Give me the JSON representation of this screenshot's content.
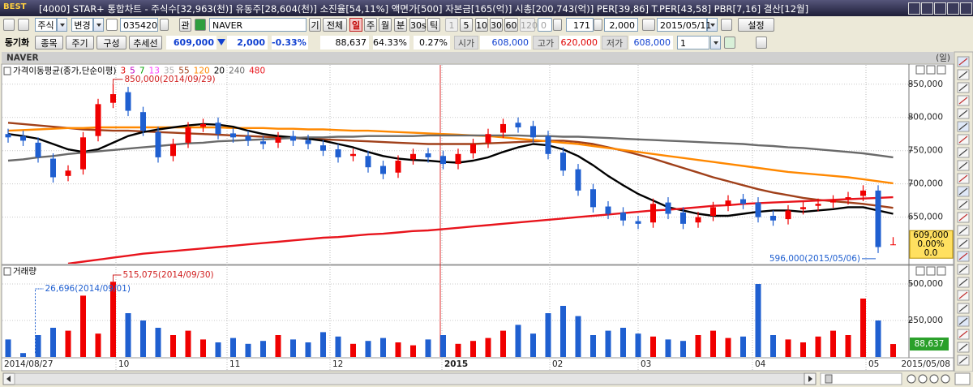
{
  "title_bar": {
    "logo": "BEST",
    "text": "[4000] STAR+ 통합차트 - 주식수[32,963(천)] 유동주[28,604(천)] 소진율[54,11%] 액면가[500] 자본금[165(억)] 시총[200,743(억)] PER[39,86] T.PER[43,58] PBR[7,16] 결산[12월]"
  },
  "toolbar_row1": [
    "주식",
    "변경",
    "035420",
    "관",
    "NAVER",
    "기",
    "전체",
    "일",
    "주",
    "월",
    "분",
    "30s",
    "틱",
    "1",
    "5",
    "10",
    "30",
    "60",
    "120",
    "0",
    "171",
    "2,000",
    "2015/05/11",
    "설정"
  ],
  "toolbar_row2": [
    "동기화",
    "종목",
    "주기",
    "구성",
    "추세선",
    "609,000",
    "2,000",
    "-0.33%",
    "88,637",
    "64.33%",
    "0.27%",
    "시가",
    "608,000",
    "고가",
    "620,000",
    "저가",
    "608,000",
    "1"
  ],
  "panel": {
    "name": "NAVER",
    "period": "(일)"
  },
  "chart_data": [
    {
      "type": "candlestick",
      "title": "가격이동평균(종가,단순이평)",
      "open": [
        775000,
        772000,
        762000,
        738000,
        712000,
        722000,
        772000,
        822000,
        838000,
        808000,
        778000,
        742000,
        762000,
        786000,
        792000,
        776000,
        772000,
        764000,
        762000,
        772000,
        766000,
        758000,
        752000,
        742000,
        742000,
        727000,
        717000,
        737000,
        746000,
        742000,
        730000,
        746000,
        762000,
        777000,
        792000,
        787000,
        772000,
        747000,
        722000,
        692000,
        666000,
        657000,
        644000,
        642000,
        672000,
        657000,
        642000,
        652000,
        667000,
        677000,
        672000,
        652000,
        647000,
        662000,
        667000,
        672000,
        677000,
        682000,
        690000,
        608000
      ],
      "high": [
        783000,
        780000,
        770000,
        746000,
        728000,
        778000,
        828000,
        850000,
        846000,
        816000,
        786000,
        768000,
        793000,
        798000,
        800000,
        784000,
        780000,
        772000,
        778000,
        780000,
        774000,
        766000,
        760000,
        753000,
        750000,
        735000,
        743000,
        753000,
        754000,
        750000,
        753000,
        768000,
        783000,
        798000,
        800000,
        795000,
        780000,
        755000,
        730000,
        700000,
        674000,
        665000,
        652000,
        678000,
        680000,
        665000,
        658000,
        673000,
        683000,
        685000,
        680000,
        660000,
        668000,
        673000,
        678000,
        683000,
        688000,
        698000,
        698000,
        620000
      ],
      "low": [
        762000,
        757000,
        732000,
        702000,
        704000,
        714000,
        764000,
        814000,
        802000,
        772000,
        732000,
        734000,
        754000,
        778000,
        767000,
        762000,
        757000,
        752000,
        754000,
        757000,
        752000,
        742000,
        732000,
        734000,
        717000,
        707000,
        709000,
        729000,
        732000,
        722000,
        722000,
        738000,
        754000,
        769000,
        777000,
        762000,
        737000,
        712000,
        682000,
        657000,
        647000,
        637000,
        632000,
        634000,
        647000,
        632000,
        634000,
        644000,
        659000,
        662000,
        642000,
        637000,
        639000,
        654000,
        659000,
        664000,
        669000,
        674000,
        596000,
        608000
      ],
      "close": [
        770000,
        765000,
        740000,
        710000,
        720000,
        770000,
        820000,
        835000,
        810000,
        780000,
        740000,
        760000,
        785000,
        790000,
        775000,
        770000,
        765000,
        760000,
        770000,
        765000,
        760000,
        750000,
        740000,
        745000,
        725000,
        715000,
        735000,
        745000,
        740000,
        730000,
        745000,
        760000,
        775000,
        790000,
        785000,
        770000,
        745000,
        720000,
        690000,
        665000,
        655000,
        645000,
        640000,
        670000,
        655000,
        640000,
        650000,
        665000,
        675000,
        670000,
        650000,
        645000,
        660000,
        665000,
        670000,
        675000,
        680000,
        690000,
        605000,
        609000
      ],
      "up_color": "#f00000",
      "down_color": "#1f5fd0",
      "ylim": [
        580000,
        879000
      ],
      "yticks": [
        {
          "value": 850000,
          "label": "850,000"
        },
        {
          "value": 800000,
          "label": "800,000"
        },
        {
          "value": 750000,
          "label": "750,000"
        },
        {
          "value": 700000,
          "label": "700,000"
        },
        {
          "value": 650000,
          "label": "650,000"
        }
      ],
      "grid": true,
      "xtick_labels": [
        "2014/08/27",
        "10",
        "11",
        "12",
        "2015",
        "02",
        "03",
        "04",
        "05",
        "2015/05/08"
      ],
      "short_ma": [
        {
          "name": "3",
          "color": "#e00000"
        },
        {
          "name": "5",
          "color": "#c000c0"
        },
        {
          "name": "7",
          "color": "#00a000"
        },
        {
          "name": "13",
          "color": "#ff40ff"
        },
        {
          "name": "35",
          "color": "#b0b0b0"
        }
      ],
      "series": [
        {
          "name": "55",
          "color": "#a0401a",
          "values": [
            792000,
            790000,
            788000,
            786000,
            784000,
            782000,
            781000,
            780000,
            780000,
            779000,
            778000,
            777000,
            776000,
            775000,
            774000,
            773000,
            772000,
            771000,
            770000,
            769000,
            768000,
            767000,
            766000,
            765000,
            764000,
            763000,
            762000,
            761000,
            760000,
            760000,
            760000,
            760000,
            761000,
            762000,
            763000,
            764000,
            765000,
            765000,
            763000,
            760000,
            755000,
            750000,
            744000,
            738000,
            731000,
            724000,
            717000,
            710000,
            704000,
            698000,
            692000,
            687000,
            683000,
            679000,
            676000,
            674000,
            672000,
            670000,
            667000,
            664000
          ]
        },
        {
          "name": "120",
          "color": "#ff8800",
          "values": [
            780000,
            781000,
            782000,
            783000,
            784000,
            784000,
            785000,
            785000,
            785000,
            785000,
            785000,
            785000,
            785000,
            785000,
            785000,
            784000,
            784000,
            784000,
            783000,
            783000,
            782000,
            782000,
            781000,
            780000,
            780000,
            779000,
            778000,
            777000,
            776000,
            775000,
            774000,
            773000,
            772000,
            770000,
            768000,
            766000,
            764000,
            762000,
            760000,
            757000,
            754000,
            751000,
            748000,
            745000,
            742000,
            739000,
            736000,
            733000,
            730000,
            727000,
            724000,
            721000,
            718000,
            716000,
            714000,
            712000,
            710000,
            707000,
            704000,
            701000
          ]
        },
        {
          "name": "20",
          "color": "#000000",
          "values": [
            775000,
            772000,
            768000,
            760000,
            752000,
            748000,
            752000,
            762000,
            772000,
            778000,
            782000,
            785000,
            788000,
            790000,
            789000,
            786000,
            780000,
            775000,
            772000,
            770000,
            768000,
            765000,
            760000,
            755000,
            748000,
            742000,
            738000,
            736000,
            735000,
            733000,
            732000,
            735000,
            740000,
            748000,
            755000,
            760000,
            758000,
            752000,
            742000,
            728000,
            712000,
            698000,
            685000,
            675000,
            665000,
            660000,
            655000,
            652000,
            652000,
            655000,
            658000,
            660000,
            660000,
            658000,
            660000,
            662000,
            665000,
            665000,
            660000,
            655000
          ]
        },
        {
          "name": "240",
          "color": "#6a6a6a",
          "values": [
            735000,
            737000,
            740000,
            742000,
            745000,
            747000,
            749000,
            751000,
            753000,
            755000,
            757000,
            759000,
            761000,
            762000,
            764000,
            765000,
            766000,
            767000,
            768000,
            769000,
            770000,
            770000,
            771000,
            771000,
            772000,
            772000,
            772000,
            772000,
            773000,
            773000,
            773000,
            773000,
            773000,
            773000,
            773000,
            772000,
            772000,
            771000,
            771000,
            770000,
            769000,
            768000,
            767000,
            766000,
            765000,
            764000,
            763000,
            762000,
            761000,
            760000,
            758000,
            757000,
            755000,
            754000,
            752000,
            750000,
            748000,
            746000,
            743000,
            740000
          ]
        },
        {
          "name": "480",
          "color": "#e8141c",
          "values": [
            null,
            null,
            null,
            null,
            580000,
            583000,
            586000,
            589000,
            592000,
            595000,
            597000,
            599000,
            601000,
            603000,
            605000,
            607000,
            609000,
            611000,
            613000,
            615000,
            617000,
            619000,
            620000,
            622000,
            624000,
            625000,
            627000,
            629000,
            630000,
            632000,
            634000,
            636000,
            638000,
            640000,
            642000,
            644000,
            646000,
            648000,
            650000,
            652000,
            654000,
            656000,
            658000,
            660000,
            661000,
            663000,
            665000,
            667000,
            668000,
            670000,
            671000,
            672000,
            673000,
            674000,
            675000,
            676000,
            677000,
            678000,
            679000,
            680000
          ]
        }
      ],
      "annotations": [
        "850,000(2014/09/29)",
        "596,000(2015/05/06)"
      ],
      "last_price_box": [
        "609,000",
        "0.00%",
        "0.0"
      ],
      "last_price_box_color": "#ffe060"
    },
    {
      "type": "bar",
      "title": "거래량",
      "values": [
        120000,
        26696,
        150000,
        200000,
        180000,
        420000,
        160000,
        515075,
        300000,
        250000,
        200000,
        150000,
        180000,
        120000,
        100000,
        130000,
        90000,
        110000,
        150000,
        120000,
        100000,
        170000,
        140000,
        90000,
        110000,
        130000,
        100000,
        80000,
        120000,
        150000,
        90000,
        110000,
        130000,
        180000,
        220000,
        160000,
        300000,
        350000,
        280000,
        150000,
        180000,
        200000,
        160000,
        140000,
        120000,
        110000,
        150000,
        180000,
        130000,
        140000,
        500000,
        150000,
        120000,
        100000,
        140000,
        180000,
        150000,
        400000,
        250000,
        88637
      ],
      "ylim": [
        0,
        600000
      ],
      "yticks": [
        {
          "value": 500000,
          "label": "500,000"
        },
        {
          "value": 250000,
          "label": "250,000"
        }
      ],
      "grid": true,
      "annotations": [
        "515,075(2014/09/30)",
        "26,696(2014/09/01)"
      ],
      "last_value_label": "88,637",
      "last_value_color": "#2aa02a"
    }
  ]
}
